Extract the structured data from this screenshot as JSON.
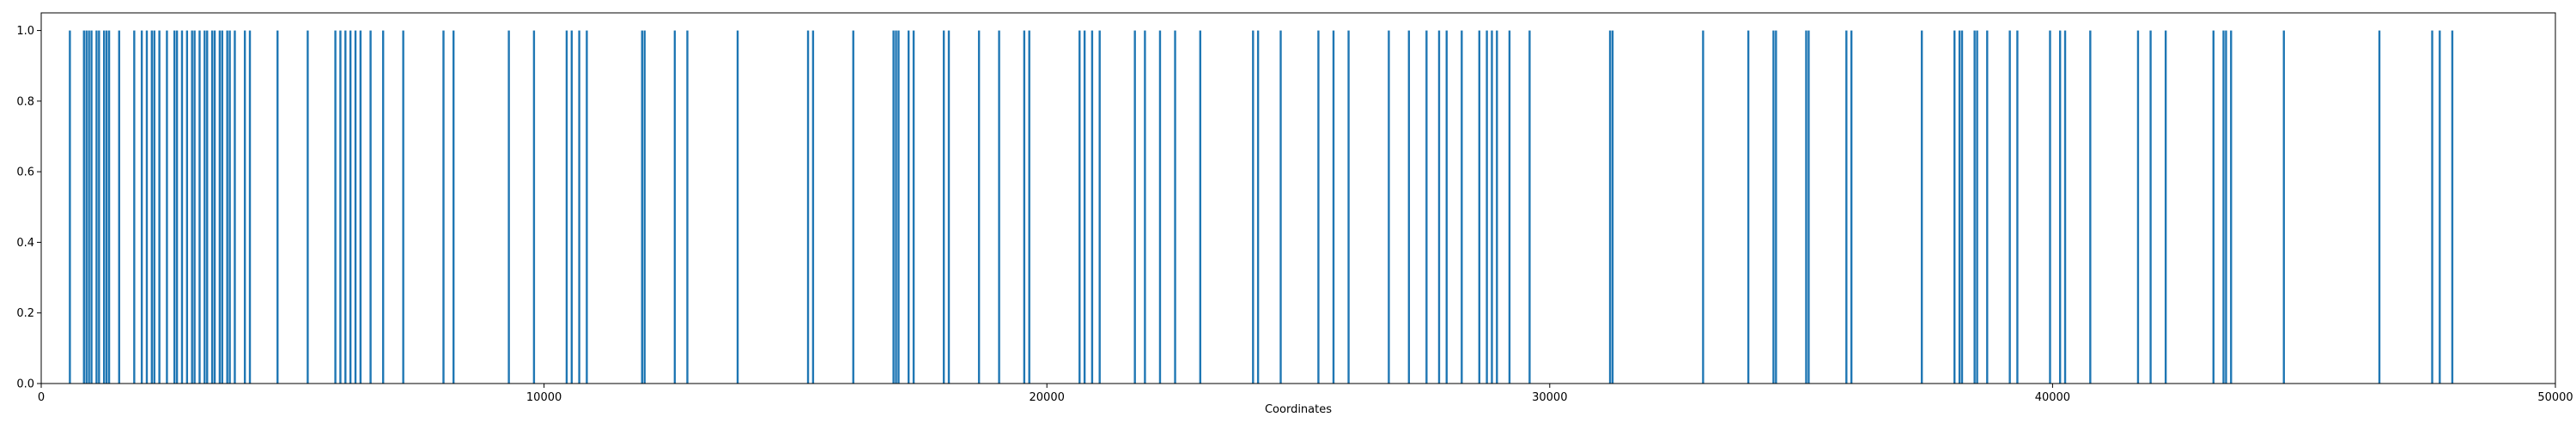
{
  "chart_data": {
    "type": "bar",
    "title": "",
    "xlabel": "Coordinates",
    "ylabel": "",
    "xlim": [
      0,
      50000
    ],
    "ylim": [
      0,
      1.05
    ],
    "grid": false,
    "color": "#1f77b4",
    "x_ticks": [
      0,
      10000,
      20000,
      30000,
      40000,
      50000
    ],
    "x_tick_labels": [
      "0",
      "10000",
      "20000",
      "30000",
      "40000",
      "50000"
    ],
    "y_ticks": [
      0.0,
      0.2,
      0.4,
      0.6,
      0.8,
      1.0
    ],
    "y_tick_labels": [
      "0.0",
      "0.2",
      "0.4",
      "0.6",
      "0.8",
      "1.0"
    ],
    "series": [
      {
        "values_constant": 1.0,
        "x": [
          570,
          850,
          900,
          950,
          1000,
          1100,
          1150,
          1250,
          1300,
          1350,
          1550,
          1850,
          2000,
          2100,
          2200,
          2250,
          2350,
          2500,
          2650,
          2700,
          2800,
          2900,
          3000,
          3050,
          3150,
          3250,
          3300,
          3400,
          3450,
          3550,
          3600,
          3700,
          3750,
          3850,
          4050,
          4150,
          4700,
          5300,
          5850,
          5950,
          6050,
          6150,
          6250,
          6350,
          6550,
          6800,
          7200,
          8000,
          8200,
          9300,
          9800,
          10450,
          10550,
          10700,
          10850,
          11950,
          12000,
          12600,
          12850,
          13850,
          15250,
          15350,
          16150,
          16950,
          17000,
          17050,
          17250,
          17350,
          17950,
          18050,
          18650,
          19050,
          19550,
          19650,
          20650,
          20750,
          20900,
          21050,
          21750,
          21950,
          22250,
          22550,
          23050,
          24100,
          24200,
          24650,
          25400,
          25700,
          26000,
          26800,
          27200,
          27550,
          27800,
          27950,
          28250,
          28600,
          28750,
          28850,
          28950,
          29200,
          29600,
          31200,
          31250,
          33050,
          33950,
          34450,
          34500,
          35100,
          35150,
          35900,
          36000,
          37400,
          38050,
          38150,
          38200,
          38450,
          38500,
          38700,
          39150,
          39300,
          39950,
          40150,
          40250,
          40750,
          41700,
          41950,
          42250,
          43200,
          43400,
          43450,
          43550,
          44600,
          46500,
          47550,
          47700,
          47950
        ]
      }
    ]
  }
}
